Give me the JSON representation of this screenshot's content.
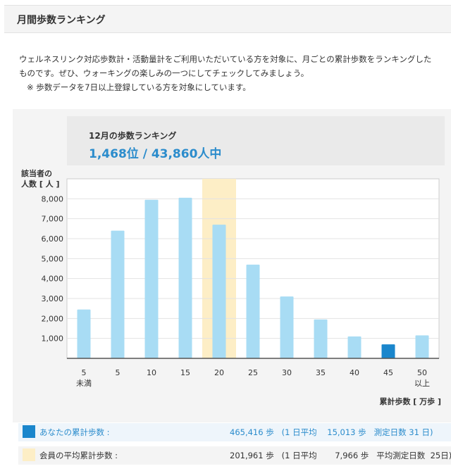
{
  "header": {
    "title": "月間歩数ランキング"
  },
  "intro": {
    "line1": "ウェルネスリンク対応歩数計・活動量計をご利用いただいている方を対象に、月ごとの累計歩数をランキングした",
    "line2": "ものです。ぜひ、ウォーキングの楽しみの一つにしてチェックしてみましょう。",
    "note": "※  歩数データを7日以上登録している方を対象にしています。"
  },
  "ranking": {
    "label": "12月の歩数ランキング",
    "value": "1,468位 / 43,860人中"
  },
  "chart_data": {
    "type": "bar",
    "ylabel_line1": "該当者の",
    "ylabel_line2": "人数 [ 人 ]",
    "xlabel": "累計歩数 [ 万歩 ]",
    "categories": [
      [
        "5",
        "未満"
      ],
      [
        "5"
      ],
      [
        "10"
      ],
      [
        "15"
      ],
      [
        "20"
      ],
      [
        "25"
      ],
      [
        "30"
      ],
      [
        "35"
      ],
      [
        "40"
      ],
      [
        "45"
      ],
      [
        "50",
        "以上"
      ]
    ],
    "values": [
      2450,
      6400,
      7950,
      8050,
      6700,
      4700,
      3100,
      1950,
      1100,
      700,
      1150
    ],
    "yticks": [
      1000,
      2000,
      3000,
      4000,
      5000,
      6000,
      7000,
      8000
    ],
    "ytick_labels": [
      "1,000",
      "2,000",
      "3,000",
      "4,000",
      "5,000",
      "6,000",
      "7,000",
      "8,000"
    ],
    "ylim": [
      0,
      9000
    ],
    "highlight_average_index": 4,
    "highlight_user_index": 9,
    "bar_color": "#a8dcf4",
    "user_bar_color": "#1a86cc",
    "average_band_color": "#fdeec6",
    "grid": true
  },
  "legend": {
    "user": {
      "label": "あなたの累計歩数 :",
      "value": "465,416 歩   (1 日平均    15,013 歩   測定日数 31 日)",
      "color": "#1a86cc",
      "text_color": "#2b8ccc"
    },
    "average": {
      "label": "会員の平均累計歩数 :",
      "value": "201,961 歩   (1 日平均       7,966 歩   平均測定日数  25日)",
      "color": "#fdeec6",
      "text_color": "#333333"
    }
  }
}
